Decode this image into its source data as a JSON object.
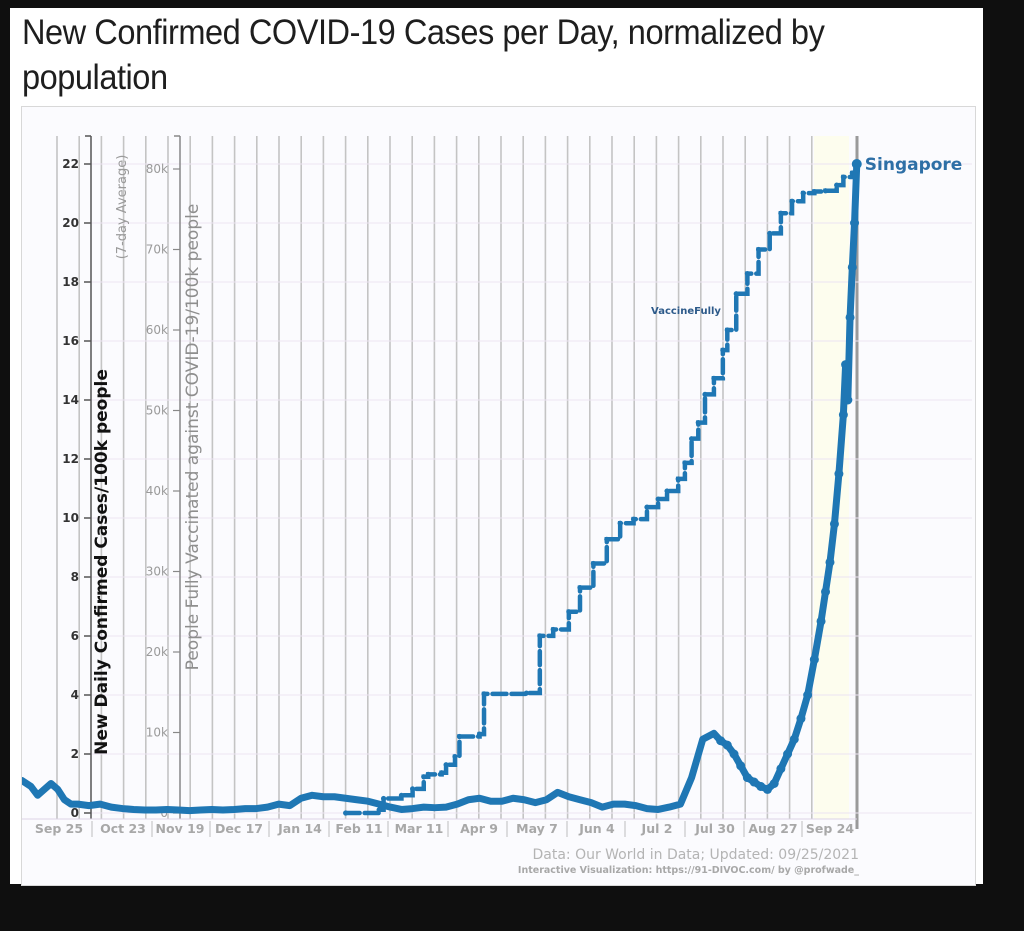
{
  "page": {
    "title": "New Confirmed COVID-19 Cases per Day, normalized by population"
  },
  "chart_data": {
    "type": "line",
    "title": "New Confirmed COVID-19 Cases per Day, normalized by population",
    "xlabel": "",
    "ylabel": "New Daily Confirmed Cases/100k people",
    "ylabel_sub": "(7-day Average)",
    "ylabel_secondary": "People Fully Vaccinated against COVID-19/100k people",
    "ylim": [
      0,
      23
    ],
    "ylim_secondary": [
      0,
      85000
    ],
    "yticks": [
      "0",
      "2",
      "4",
      "6",
      "8",
      "10",
      "12",
      "14",
      "16",
      "18",
      "20",
      "22"
    ],
    "ytick_values": [
      0,
      2,
      4,
      6,
      8,
      10,
      12,
      14,
      16,
      18,
      20,
      22
    ],
    "yticks_secondary": [
      "0",
      "10k",
      "20k",
      "30k",
      "40k",
      "50k",
      "60k",
      "70k",
      "80k"
    ],
    "ytick_values_secondary": [
      0,
      10000,
      20000,
      30000,
      40000,
      50000,
      60000,
      70000,
      80000
    ],
    "x_domain_days": [
      -10,
      365
    ],
    "x_axis_start_date": "Sep 25",
    "xticks": [
      "Sep 25",
      "Oct 23",
      "Nov 19",
      "Dec 17",
      "Jan 14",
      "Feb 11",
      "Mar 11",
      "Apr 9",
      "May 7",
      "Jun 4",
      "Jul 2",
      "Jul 30",
      "Aug 27",
      "Sep 24"
    ],
    "grid": true,
    "legend": "end-of-line label",
    "series": [
      {
        "name": "Singapore",
        "axis": "primary",
        "metric": "New daily confirmed cases per 100k (7-day average)",
        "color": "#1f77b4",
        "x_days": [
          -10,
          -6,
          -3,
          0,
          3,
          6,
          9,
          12,
          15,
          20,
          25,
          30,
          35,
          40,
          45,
          50,
          55,
          60,
          65,
          70,
          75,
          80,
          85,
          90,
          95,
          100,
          105,
          110,
          115,
          120,
          125,
          130,
          135,
          140,
          145,
          150,
          155,
          160,
          165,
          170,
          175,
          180,
          185,
          190,
          195,
          200,
          205,
          210,
          215,
          220,
          225,
          230,
          235,
          240,
          245,
          250,
          255,
          260,
          265,
          270,
          275,
          280,
          285,
          290,
          295,
          300,
          303,
          306,
          309,
          312,
          315,
          318,
          321,
          324,
          327,
          330,
          333,
          336,
          339,
          342,
          345,
          348,
          350,
          352,
          354,
          356,
          358,
          359,
          360,
          361,
          362,
          363,
          364
        ],
        "values": [
          1.1,
          0.9,
          0.6,
          0.8,
          1.0,
          0.8,
          0.45,
          0.3,
          0.3,
          0.25,
          0.3,
          0.2,
          0.15,
          0.12,
          0.1,
          0.1,
          0.12,
          0.1,
          0.08,
          0.1,
          0.12,
          0.1,
          0.12,
          0.15,
          0.15,
          0.2,
          0.3,
          0.25,
          0.5,
          0.6,
          0.55,
          0.55,
          0.5,
          0.45,
          0.4,
          0.3,
          0.2,
          0.12,
          0.15,
          0.2,
          0.18,
          0.2,
          0.3,
          0.45,
          0.5,
          0.4,
          0.4,
          0.5,
          0.45,
          0.35,
          0.45,
          0.7,
          0.55,
          0.45,
          0.35,
          0.2,
          0.3,
          0.3,
          0.25,
          0.15,
          0.12,
          0.2,
          0.3,
          1.2,
          2.5,
          2.7,
          2.45,
          2.3,
          2.0,
          1.6,
          1.2,
          1.05,
          0.9,
          0.8,
          1.0,
          1.5,
          2.0,
          2.5,
          3.2,
          4.0,
          5.2,
          6.5,
          7.5,
          8.5,
          9.8,
          11.5,
          13.5,
          15.2,
          14.0,
          16.8,
          18.5,
          20.0,
          22.0
        ]
      },
      {
        "name": "VaccineFully",
        "axis": "secondary",
        "metric": "People fully vaccinated per 100k",
        "color": "#1f77b4",
        "x_days": [
          135,
          150,
          152,
          160,
          165,
          170,
          172,
          178,
          180,
          184,
          186,
          195,
          197,
          216,
          222,
          228,
          235,
          240,
          246,
          252,
          258,
          264,
          270,
          275,
          279,
          284,
          287,
          290,
          293,
          296,
          300,
          304,
          306,
          310,
          315,
          320,
          325,
          330,
          335,
          340,
          345,
          350,
          355,
          358,
          362,
          364
        ],
        "values": [
          0,
          400,
          1800,
          2200,
          3000,
          4500,
          4800,
          5000,
          6000,
          7000,
          9500,
          9800,
          14800,
          14900,
          22000,
          22800,
          25000,
          28000,
          31000,
          34000,
          36000,
          36500,
          38000,
          39000,
          40000,
          41500,
          43500,
          46500,
          48500,
          52000,
          54000,
          57500,
          60000,
          64500,
          67000,
          70000,
          72000,
          74500,
          76000,
          77000,
          77200,
          77300,
          78000,
          79000,
          79500,
          80000
        ]
      }
    ],
    "annotations": [
      {
        "text": "VaccineFully",
        "series": "VaccineFully"
      },
      {
        "text": "Singapore",
        "series": "Singapore"
      }
    ],
    "source": "Data: Our World in Data; Updated: 09/25/2021",
    "credit": "Interactive Visualization: https://91-DIVOC.com/ by @profwade_"
  }
}
